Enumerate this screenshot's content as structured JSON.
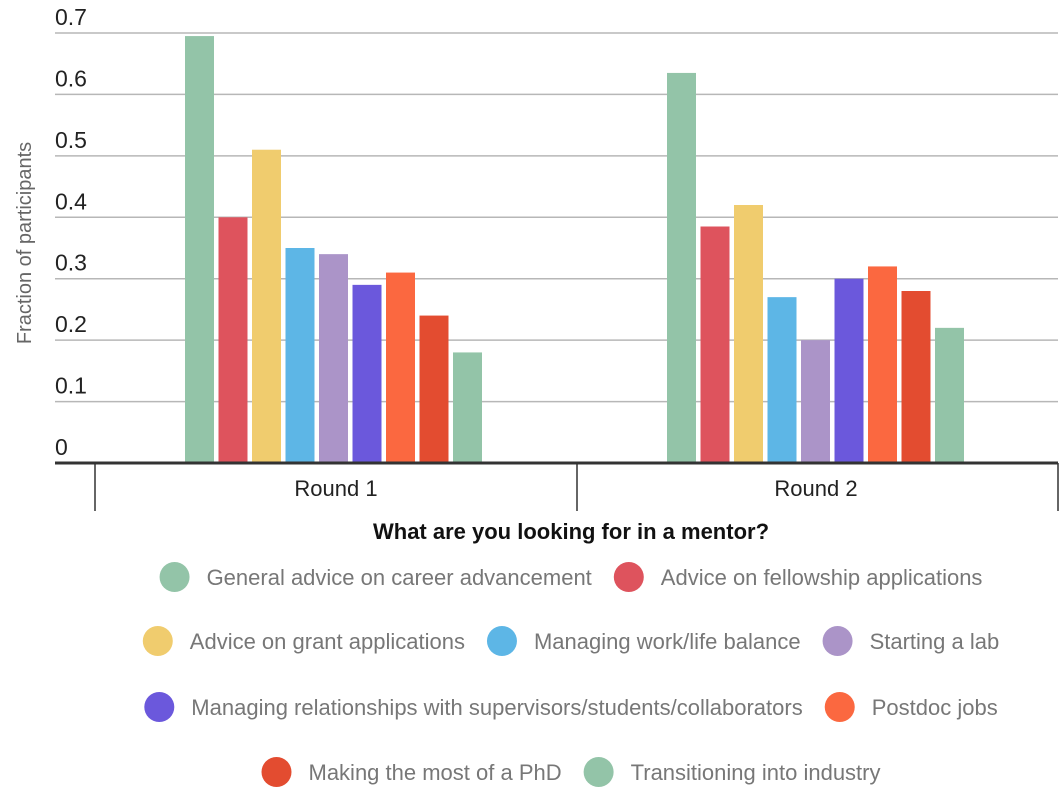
{
  "chart_data": {
    "type": "bar",
    "title": "",
    "xlabel": "What are you looking for in a mentor?",
    "ylabel": "Fraction of participants",
    "ylim": [
      0,
      0.7
    ],
    "yticks": [
      "0",
      "0.1",
      "0.2",
      "0.3",
      "0.4",
      "0.5",
      "0.6",
      "0.7"
    ],
    "grid": true,
    "legend_position": "bottom",
    "categories": [
      "Round 1",
      "Round 2"
    ],
    "series": [
      {
        "name": "General advice on career advancement",
        "color": "#93c4a8",
        "values": [
          0.695,
          0.635
        ]
      },
      {
        "name": "Advice on fellowship applications",
        "color": "#de535d",
        "values": [
          0.4,
          0.385
        ]
      },
      {
        "name": "Advice on grant applications",
        "color": "#f0cc6e",
        "values": [
          0.51,
          0.42
        ]
      },
      {
        "name": "Managing work/life balance",
        "color": "#5db6e6",
        "values": [
          0.35,
          0.27
        ]
      },
      {
        "name": "Starting a lab",
        "color": "#ab94c8",
        "values": [
          0.34,
          0.2
        ]
      },
      {
        "name": "Managing relationships with supervisors/students/collaborators",
        "color": "#6b58dc",
        "values": [
          0.29,
          0.3
        ]
      },
      {
        "name": "Postdoc jobs",
        "color": "#fb6840",
        "values": [
          0.31,
          0.32
        ]
      },
      {
        "name": "Making the most of a PhD",
        "color": "#e34c30",
        "values": [
          0.24,
          0.28
        ]
      },
      {
        "name": "Transitioning into industry",
        "color": "#93c4a8",
        "values": [
          0.18,
          0.22
        ]
      }
    ]
  }
}
